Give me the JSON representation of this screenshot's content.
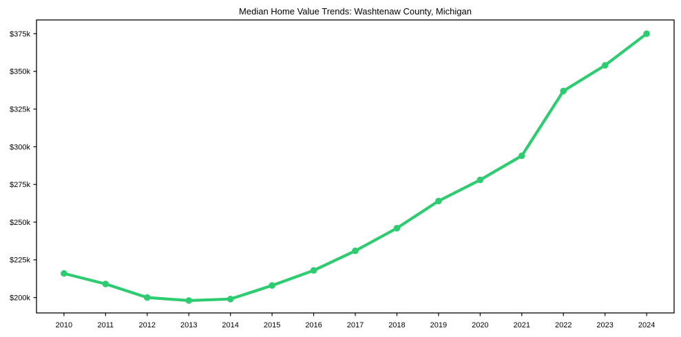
{
  "chart_data": {
    "type": "line",
    "title": "Median Home Value Trends: Washtenaw County, Michigan",
    "x": [
      2010,
      2011,
      2012,
      2013,
      2014,
      2015,
      2016,
      2017,
      2018,
      2019,
      2020,
      2021,
      2022,
      2023,
      2024
    ],
    "values": [
      216,
      209,
      200,
      198,
      199,
      208,
      218,
      231,
      246,
      264,
      278,
      294,
      337,
      354,
      375
    ],
    "values_unit": "thousand USD",
    "xlabel": "",
    "ylabel": "",
    "x_tick_labels": [
      "2010",
      "2011",
      "2012",
      "2013",
      "2014",
      "2015",
      "2016",
      "2017",
      "2018",
      "2019",
      "2020",
      "2021",
      "2022",
      "2023",
      "2024"
    ],
    "y_ticks": [
      200,
      225,
      250,
      275,
      300,
      325,
      350,
      375
    ],
    "y_tick_labels": [
      "$200k",
      "$225k",
      "$250k",
      "$275k",
      "$300k",
      "$325k",
      "$350k",
      "$375k"
    ],
    "ylim": [
      189.8,
      384.1
    ],
    "xlim": [
      2009.34,
      2024.66
    ],
    "grid": false,
    "legend_position": "none",
    "marker": "circle",
    "line_color": "#2ecc71",
    "axis_color": "#000000",
    "background_color": "#ffffff"
  }
}
